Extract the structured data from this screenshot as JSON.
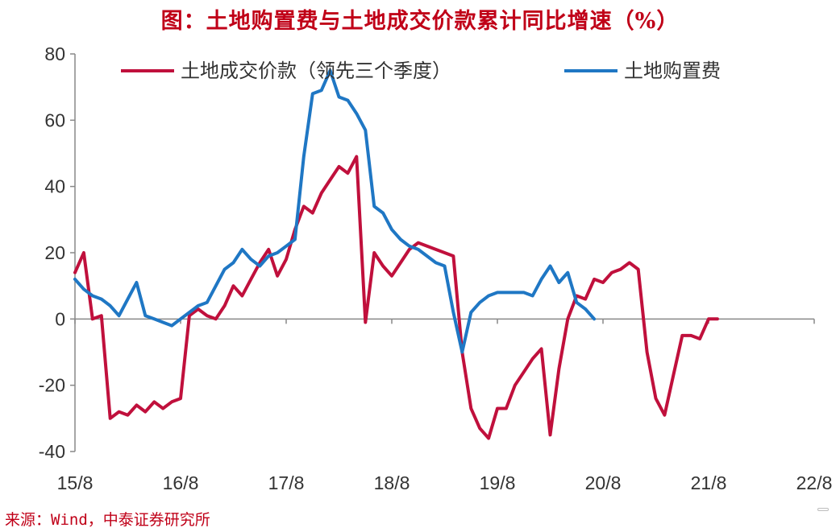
{
  "title": "图：土地购置费与土地成交价款累计同比增速（%）",
  "source": "来源：Wind，中泰证券研究所",
  "watermark": "格隆汇",
  "chart_data": {
    "type": "line",
    "title": "图：土地购置费与土地成交价款累计同比增速（%）",
    "ylim": [
      -40,
      80
    ],
    "yticks": [
      80,
      60,
      40,
      20,
      0,
      -20,
      -40
    ],
    "xlabels": [
      "15/8",
      "16/8",
      "17/8",
      "18/8",
      "19/8",
      "20/8",
      "21/8",
      "22/8"
    ],
    "x_start": "2015-08",
    "x_end": "2022-08",
    "legend_position": "top",
    "grid": false,
    "series": [
      {
        "name": "土地成交价款（领先三个季度）",
        "color": "#c0103c",
        "points": [
          [
            "2015-08",
            14
          ],
          [
            "2015-09",
            20
          ],
          [
            "2015-10",
            0
          ],
          [
            "2015-11",
            1
          ],
          [
            "2015-12",
            -30
          ],
          [
            "2016-01",
            -28
          ],
          [
            "2016-02",
            -29
          ],
          [
            "2016-03",
            -26
          ],
          [
            "2016-04",
            -28
          ],
          [
            "2016-05",
            -25
          ],
          [
            "2016-06",
            -27
          ],
          [
            "2016-07",
            -25
          ],
          [
            "2016-08",
            -24
          ],
          [
            "2016-09",
            1
          ],
          [
            "2016-10",
            3
          ],
          [
            "2016-11",
            1
          ],
          [
            "2016-12",
            0
          ],
          [
            "2017-01",
            4
          ],
          [
            "2017-02",
            10
          ],
          [
            "2017-03",
            7
          ],
          [
            "2017-04",
            12
          ],
          [
            "2017-05",
            17
          ],
          [
            "2017-06",
            21
          ],
          [
            "2017-07",
            13
          ],
          [
            "2017-08",
            18
          ],
          [
            "2017-09",
            27
          ],
          [
            "2017-10",
            34
          ],
          [
            "2017-11",
            32
          ],
          [
            "2017-12",
            38
          ],
          [
            "2018-01",
            42
          ],
          [
            "2018-02",
            46
          ],
          [
            "2018-03",
            44
          ],
          [
            "2018-04",
            49
          ],
          [
            "2018-05",
            -1
          ],
          [
            "2018-06",
            20
          ],
          [
            "2018-07",
            16
          ],
          [
            "2018-08",
            13
          ],
          [
            "2018-09",
            17
          ],
          [
            "2018-10",
            21
          ],
          [
            "2018-11",
            23
          ],
          [
            "2018-12",
            22
          ],
          [
            "2019-01",
            21
          ],
          [
            "2019-02",
            20
          ],
          [
            "2019-03",
            19
          ],
          [
            "2019-04",
            -10
          ],
          [
            "2019-05",
            -27
          ],
          [
            "2019-06",
            -33
          ],
          [
            "2019-07",
            -36
          ],
          [
            "2019-08",
            -27
          ],
          [
            "2019-09",
            -27
          ],
          [
            "2019-10",
            -20
          ],
          [
            "2019-11",
            -16
          ],
          [
            "2019-12",
            -12
          ],
          [
            "2020-01",
            -9
          ],
          [
            "2020-02",
            -35
          ],
          [
            "2020-03",
            -15
          ],
          [
            "2020-04",
            0
          ],
          [
            "2020-05",
            7
          ],
          [
            "2020-06",
            6
          ],
          [
            "2020-07",
            12
          ],
          [
            "2020-08",
            11
          ],
          [
            "2020-09",
            14
          ],
          [
            "2020-10",
            15
          ],
          [
            "2020-11",
            17
          ],
          [
            "2020-12",
            15
          ],
          [
            "2021-01",
            -10
          ],
          [
            "2021-02",
            -24
          ],
          [
            "2021-03",
            -29
          ],
          [
            "2021-04",
            -17
          ],
          [
            "2021-05",
            -5
          ],
          [
            "2021-06",
            -5
          ],
          [
            "2021-07",
            -6
          ],
          [
            "2021-08",
            0
          ],
          [
            "2021-09",
            0
          ]
        ]
      },
      {
        "name": "土地购置费",
        "color": "#1f77c4",
        "points": [
          [
            "2015-08",
            12
          ],
          [
            "2015-09",
            9
          ],
          [
            "2015-10",
            7
          ],
          [
            "2015-11",
            6
          ],
          [
            "2015-12",
            4
          ],
          [
            "2016-01",
            1
          ],
          [
            "2016-02",
            6
          ],
          [
            "2016-03",
            11
          ],
          [
            "2016-04",
            1
          ],
          [
            "2016-05",
            0
          ],
          [
            "2016-06",
            -1
          ],
          [
            "2016-07",
            -2
          ],
          [
            "2016-08",
            0
          ],
          [
            "2016-09",
            2
          ],
          [
            "2016-10",
            4
          ],
          [
            "2016-11",
            5
          ],
          [
            "2016-12",
            10
          ],
          [
            "2017-01",
            15
          ],
          [
            "2017-02",
            17
          ],
          [
            "2017-03",
            21
          ],
          [
            "2017-04",
            18
          ],
          [
            "2017-05",
            16
          ],
          [
            "2017-06",
            19
          ],
          [
            "2017-07",
            20
          ],
          [
            "2017-08",
            22
          ],
          [
            "2017-09",
            24
          ],
          [
            "2017-10",
            49
          ],
          [
            "2017-11",
            68
          ],
          [
            "2017-12",
            69
          ],
          [
            "2018-01",
            75
          ],
          [
            "2018-02",
            67
          ],
          [
            "2018-03",
            66
          ],
          [
            "2018-04",
            62
          ],
          [
            "2018-05",
            57
          ],
          [
            "2018-06",
            34
          ],
          [
            "2018-07",
            32
          ],
          [
            "2018-08",
            27
          ],
          [
            "2018-09",
            24
          ],
          [
            "2018-10",
            22
          ],
          [
            "2018-11",
            21
          ],
          [
            "2018-12",
            19
          ],
          [
            "2019-01",
            17
          ],
          [
            "2019-02",
            16
          ],
          [
            "2019-03",
            2
          ],
          [
            "2019-04",
            -10
          ],
          [
            "2019-05",
            2
          ],
          [
            "2019-06",
            5
          ],
          [
            "2019-07",
            7
          ],
          [
            "2019-08",
            8
          ],
          [
            "2019-09",
            8
          ],
          [
            "2019-10",
            8
          ],
          [
            "2019-11",
            8
          ],
          [
            "2019-12",
            7
          ],
          [
            "2020-01",
            12
          ],
          [
            "2020-02",
            16
          ],
          [
            "2020-03",
            11
          ],
          [
            "2020-04",
            14
          ],
          [
            "2020-05",
            5
          ],
          [
            "2020-06",
            3
          ],
          [
            "2020-07",
            0
          ]
        ]
      }
    ]
  }
}
